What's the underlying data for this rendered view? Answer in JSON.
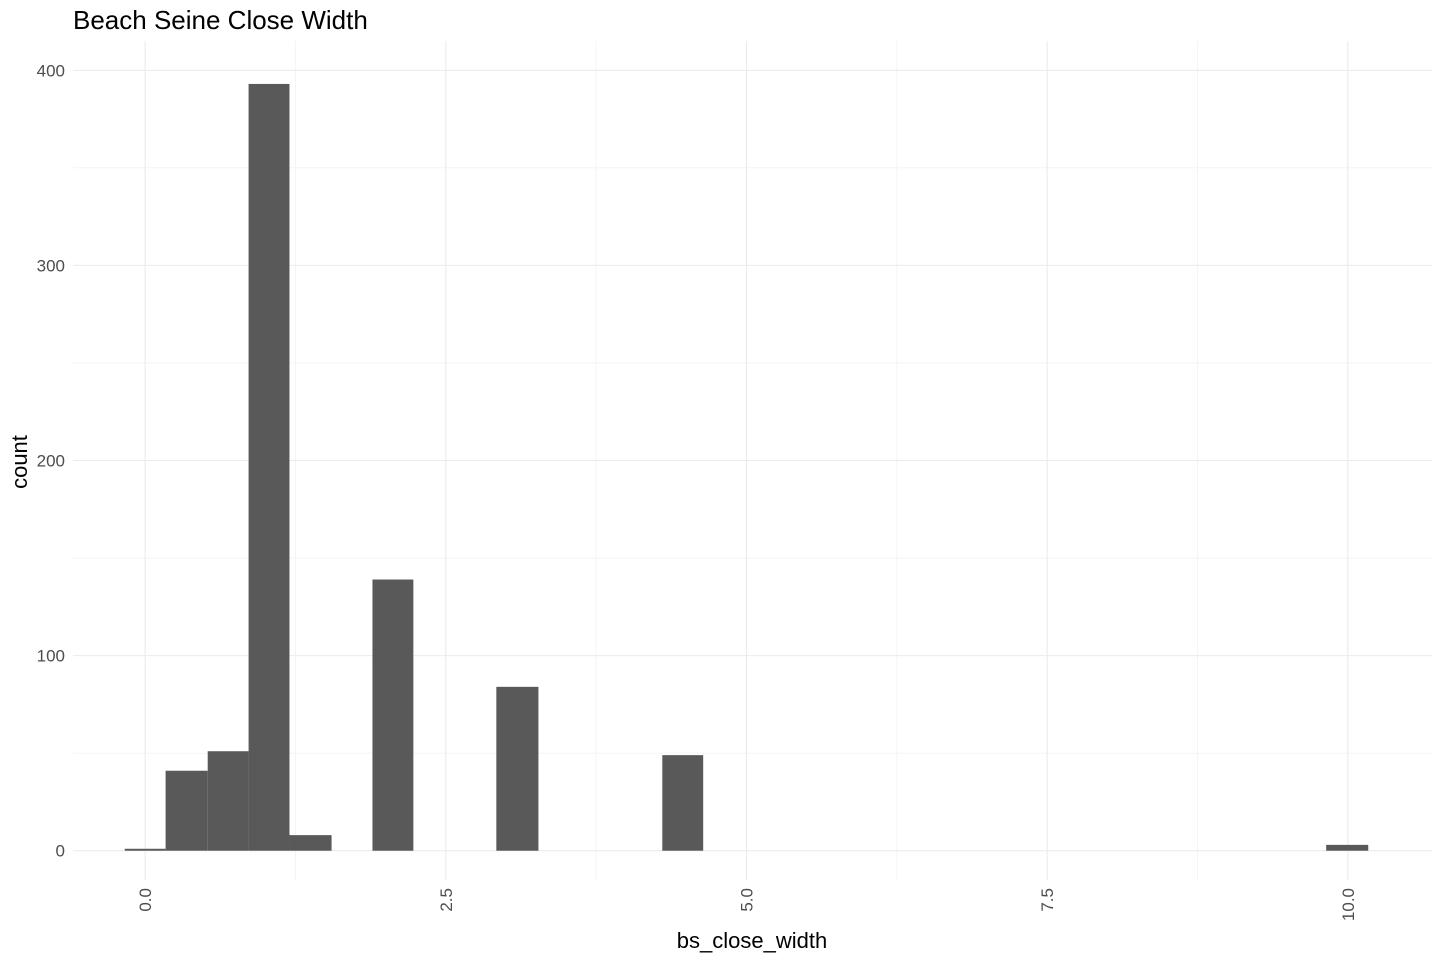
{
  "chart_data": {
    "type": "bar",
    "title": "Beach Seine Close Width",
    "xlabel": "bs_close_width",
    "ylabel": "count",
    "xlim": [
      -0.6,
      10.7
    ],
    "ylim": [
      -15,
      415
    ],
    "x_ticks": [
      0,
      2.5,
      5,
      7.5,
      10
    ],
    "x_tick_labels": [
      "0.0",
      "2.5",
      "5.0",
      "7.5",
      "10.0"
    ],
    "x_minor_ticks": [
      1.25,
      3.75,
      6.25,
      8.75
    ],
    "y_ticks": [
      0,
      100,
      200,
      300,
      400
    ],
    "y_tick_labels": [
      "0",
      "100",
      "200",
      "300",
      "400"
    ],
    "y_minor_ticks": [
      50,
      150,
      250,
      350
    ],
    "grid": true,
    "legend": "none",
    "bar_color": "#595959",
    "grid_color": "#ebebeb",
    "bins": [
      {
        "x0": -0.17,
        "x1": 0.17,
        "count": 1
      },
      {
        "x0": 0.17,
        "x1": 0.52,
        "count": 41
      },
      {
        "x0": 0.52,
        "x1": 0.86,
        "count": 51
      },
      {
        "x0": 0.86,
        "x1": 1.2,
        "count": 393
      },
      {
        "x0": 1.2,
        "x1": 1.55,
        "count": 8
      },
      {
        "x0": 1.89,
        "x1": 2.23,
        "count": 139
      },
      {
        "x0": 2.92,
        "x1": 3.27,
        "count": 84
      },
      {
        "x0": 4.3,
        "x1": 4.64,
        "count": 49
      },
      {
        "x0": 9.82,
        "x1": 10.17,
        "count": 3
      }
    ]
  }
}
